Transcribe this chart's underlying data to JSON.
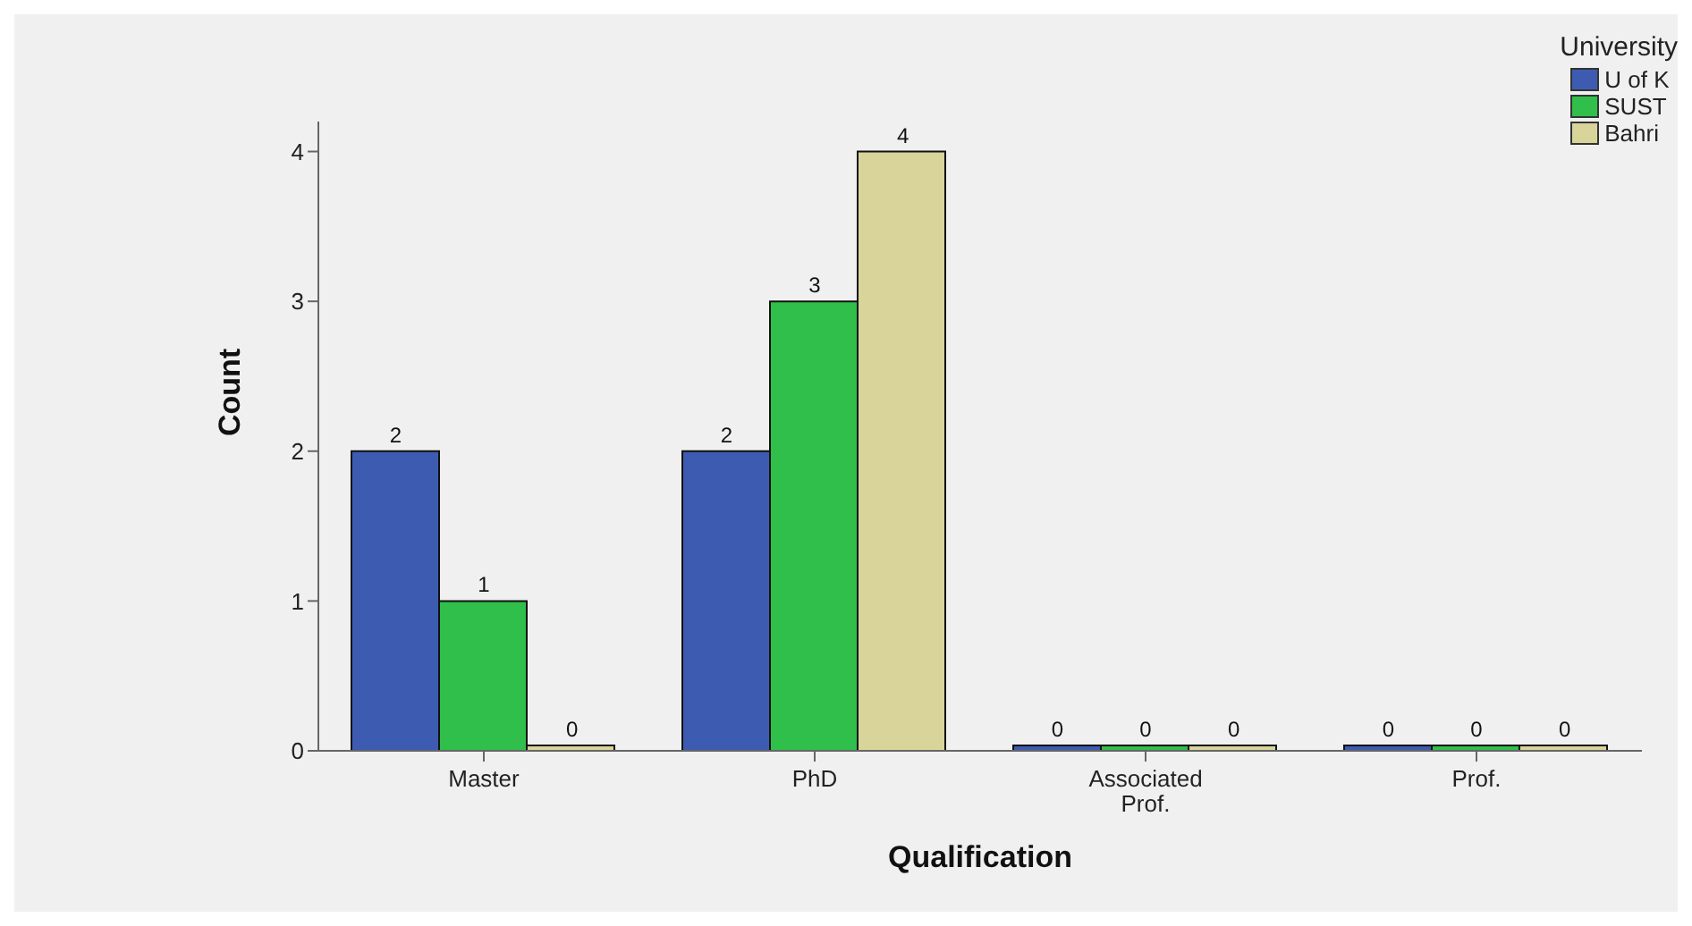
{
  "chart_data": {
    "type": "bar",
    "xlabel": "Qualification",
    "ylabel": "Count",
    "legend_title": "University",
    "categories": [
      "Master",
      "PhD",
      "Associated Prof.",
      "Prof."
    ],
    "series": [
      {
        "name": "U of K",
        "color": "#3d5bb0",
        "values": [
          2,
          2,
          0,
          0
        ]
      },
      {
        "name": "SUST",
        "color": "#2fbf4a",
        "values": [
          1,
          3,
          0,
          0
        ]
      },
      {
        "name": "Bahri",
        "color": "#d8d49a",
        "values": [
          0,
          4,
          0,
          0
        ]
      }
    ],
    "ylim": [
      0,
      4.2
    ],
    "yticks": [
      0,
      1,
      2,
      3,
      4
    ],
    "data_labels": true,
    "grid": false,
    "legend": "top right"
  }
}
